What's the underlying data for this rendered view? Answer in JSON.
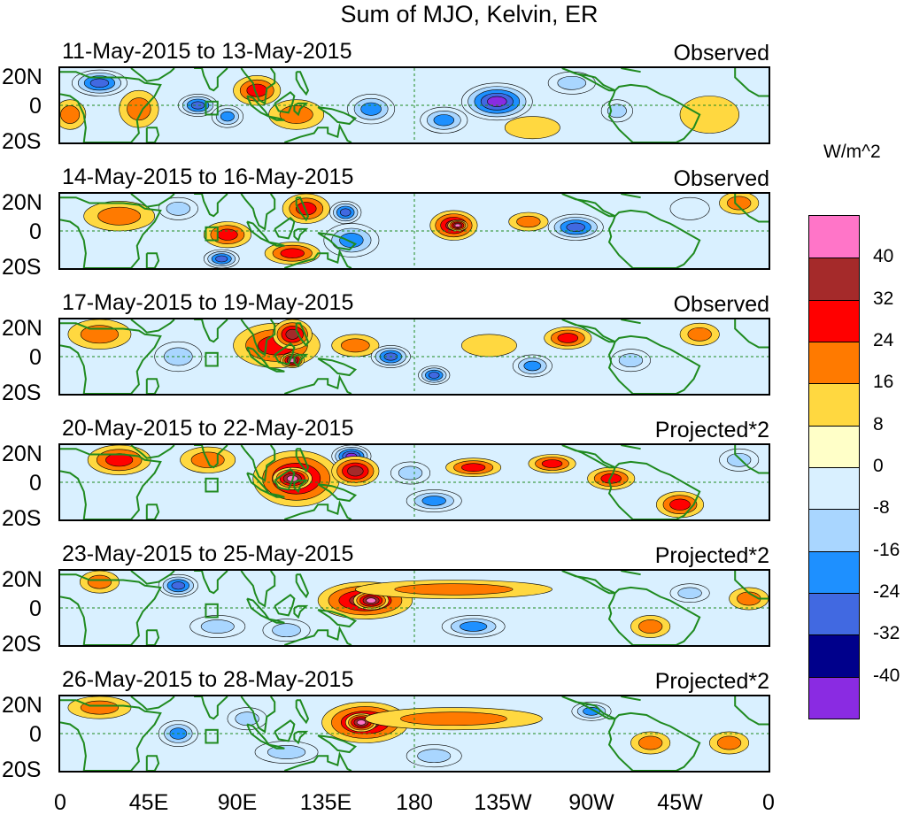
{
  "title": "Sum of MJO, Kelvin, ER",
  "colorbar": {
    "units": "W/m^2",
    "levels": [
      "40",
      "32",
      "24",
      "16",
      "8",
      "0",
      "-8",
      "-16",
      "-24",
      "-32",
      "-40"
    ],
    "colors": [
      "#ff75c8",
      "#a52a2a",
      "#ff0000",
      "#ff7a00",
      "#ffd840",
      "#ffffc8",
      "#d9f0ff",
      "#a9d6ff",
      "#1e90ff",
      "#4169e1",
      "#00008b",
      "#8a2be2"
    ]
  },
  "panels": [
    {
      "date_range": "11-May-2015 to 13-May-2015",
      "status": "Observed"
    },
    {
      "date_range": "14-May-2015 to 16-May-2015",
      "status": "Observed"
    },
    {
      "date_range": "17-May-2015 to 19-May-2015",
      "status": "Observed"
    },
    {
      "date_range": "20-May-2015 to 22-May-2015",
      "status": "Projected*2"
    },
    {
      "date_range": "23-May-2015 to 25-May-2015",
      "status": "Projected*2"
    },
    {
      "date_range": "26-May-2015 to 28-May-2015",
      "status": "Projected*2"
    }
  ],
  "lat_labels": {
    "north": "20N",
    "equator": "0",
    "south": "20S"
  },
  "lon_labels": [
    "0",
    "45E",
    "90E",
    "135E",
    "180",
    "135W",
    "90W",
    "45W",
    "0"
  ],
  "anomalies": [
    [
      {
        "lon": 20,
        "lat": 12,
        "rx": 14,
        "ry": 7,
        "level": -32
      },
      {
        "lon": 70,
        "lat": 0,
        "rx": 10,
        "ry": 6,
        "level": -32
      },
      {
        "lon": 85,
        "lat": -6,
        "rx": 8,
        "ry": 6,
        "level": -24
      },
      {
        "lon": 40,
        "lat": -2,
        "rx": 10,
        "ry": 10,
        "level": 16
      },
      {
        "lon": 120,
        "lat": -5,
        "rx": 14,
        "ry": 8,
        "level": 16
      },
      {
        "lon": 100,
        "lat": 8,
        "rx": 12,
        "ry": 8,
        "level": 24
      },
      {
        "lon": 158,
        "lat": -2,
        "rx": 12,
        "ry": 8,
        "level": -24
      },
      {
        "lon": 222,
        "lat": 2,
        "rx": 18,
        "ry": 10,
        "level": -40
      },
      {
        "lon": 195,
        "lat": -8,
        "rx": 12,
        "ry": 7,
        "level": -24
      },
      {
        "lon": 260,
        "lat": 12,
        "rx": 12,
        "ry": 6,
        "level": -16
      },
      {
        "lon": 283,
        "lat": -3,
        "rx": 8,
        "ry": 6,
        "level": -16
      },
      {
        "lon": 330,
        "lat": -5,
        "rx": 15,
        "ry": 10,
        "level": 8
      },
      {
        "lon": 5,
        "lat": -5,
        "rx": 8,
        "ry": 8,
        "level": 16
      },
      {
        "lon": 240,
        "lat": -12,
        "rx": 14,
        "ry": 6,
        "level": 8
      }
    ],
    [
      {
        "lon": 30,
        "lat": 8,
        "rx": 18,
        "ry": 8,
        "level": 16
      },
      {
        "lon": 60,
        "lat": 12,
        "rx": 10,
        "ry": 6,
        "level": -16
      },
      {
        "lon": 85,
        "lat": -2,
        "rx": 12,
        "ry": 7,
        "level": 24
      },
      {
        "lon": 82,
        "lat": -15,
        "rx": 9,
        "ry": 5,
        "level": -32
      },
      {
        "lon": 125,
        "lat": 12,
        "rx": 12,
        "ry": 8,
        "level": 24
      },
      {
        "lon": 118,
        "lat": -12,
        "rx": 14,
        "ry": 6,
        "level": 24
      },
      {
        "lon": 145,
        "lat": 10,
        "rx": 8,
        "ry": 6,
        "level": -32
      },
      {
        "lon": 148,
        "lat": -5,
        "rx": 14,
        "ry": 9,
        "level": -24
      },
      {
        "lon": 200,
        "lat": 3,
        "rx": 12,
        "ry": 8,
        "level": 32
      },
      {
        "lon": 202,
        "lat": 3,
        "rx": 5,
        "ry": 3,
        "level": 40
      },
      {
        "lon": 238,
        "lat": 5,
        "rx": 10,
        "ry": 5,
        "level": 16
      },
      {
        "lon": 262,
        "lat": 2,
        "rx": 14,
        "ry": 7,
        "level": -32
      },
      {
        "lon": 320,
        "lat": 12,
        "rx": 10,
        "ry": 6,
        "level": -8
      },
      {
        "lon": 345,
        "lat": 15,
        "rx": 10,
        "ry": 6,
        "level": 16
      }
    ],
    [
      {
        "lon": 20,
        "lat": 12,
        "rx": 16,
        "ry": 8,
        "level": 16
      },
      {
        "lon": 60,
        "lat": 0,
        "rx": 12,
        "ry": 8,
        "level": -16
      },
      {
        "lon": 110,
        "lat": 6,
        "rx": 22,
        "ry": 12,
        "level": 24
      },
      {
        "lon": 118,
        "lat": 12,
        "rx": 10,
        "ry": 8,
        "level": 32
      },
      {
        "lon": 118,
        "lat": -2,
        "rx": 6,
        "ry": 4,
        "level": 40
      },
      {
        "lon": 150,
        "lat": 6,
        "rx": 12,
        "ry": 6,
        "level": 16
      },
      {
        "lon": 168,
        "lat": 0,
        "rx": 10,
        "ry": 6,
        "level": -32
      },
      {
        "lon": 190,
        "lat": -10,
        "rx": 8,
        "ry": 5,
        "level": -32
      },
      {
        "lon": 218,
        "lat": 6,
        "rx": 14,
        "ry": 6,
        "level": 8
      },
      {
        "lon": 258,
        "lat": 10,
        "rx": 12,
        "ry": 6,
        "level": 24
      },
      {
        "lon": 240,
        "lat": -5,
        "rx": 10,
        "ry": 6,
        "level": -24
      },
      {
        "lon": 290,
        "lat": -2,
        "rx": 10,
        "ry": 6,
        "level": -16
      },
      {
        "lon": 325,
        "lat": 12,
        "rx": 10,
        "ry": 6,
        "level": 16
      }
    ],
    [
      {
        "lon": 30,
        "lat": 12,
        "rx": 16,
        "ry": 8,
        "level": 24
      },
      {
        "lon": 75,
        "lat": 12,
        "rx": 14,
        "ry": 7,
        "level": 16
      },
      {
        "lon": 120,
        "lat": 2,
        "rx": 22,
        "ry": 15,
        "level": 32
      },
      {
        "lon": 118,
        "lat": 2,
        "rx": 10,
        "ry": 6,
        "level": 40
      },
      {
        "lon": 148,
        "lat": 14,
        "rx": 10,
        "ry": 6,
        "level": -40
      },
      {
        "lon": 150,
        "lat": 6,
        "rx": 12,
        "ry": 8,
        "level": 32
      },
      {
        "lon": 178,
        "lat": 5,
        "rx": 10,
        "ry": 6,
        "level": -16
      },
      {
        "lon": 190,
        "lat": -10,
        "rx": 14,
        "ry": 6,
        "level": -24
      },
      {
        "lon": 210,
        "lat": 8,
        "rx": 14,
        "ry": 5,
        "level": 24
      },
      {
        "lon": 250,
        "lat": 10,
        "rx": 12,
        "ry": 5,
        "level": 24
      },
      {
        "lon": 280,
        "lat": 2,
        "rx": 12,
        "ry": 6,
        "level": 24
      },
      {
        "lon": 315,
        "lat": -12,
        "rx": 12,
        "ry": 7,
        "level": 24
      },
      {
        "lon": 345,
        "lat": 12,
        "rx": 10,
        "ry": 6,
        "level": -16
      }
    ],
    [
      {
        "lon": 20,
        "lat": 14,
        "rx": 10,
        "ry": 6,
        "level": 16
      },
      {
        "lon": 60,
        "lat": 12,
        "rx": 10,
        "ry": 6,
        "level": -32
      },
      {
        "lon": 80,
        "lat": -10,
        "rx": 14,
        "ry": 6,
        "level": -16
      },
      {
        "lon": 155,
        "lat": 4,
        "rx": 24,
        "ry": 10,
        "level": 32
      },
      {
        "lon": 158,
        "lat": 4,
        "rx": 9,
        "ry": 5,
        "level": 40
      },
      {
        "lon": 200,
        "lat": 10,
        "rx": 50,
        "ry": 5,
        "level": 16
      },
      {
        "lon": 210,
        "lat": -10,
        "rx": 16,
        "ry": 6,
        "level": -24
      },
      {
        "lon": 115,
        "lat": -12,
        "rx": 12,
        "ry": 6,
        "level": -16
      },
      {
        "lon": 300,
        "lat": -10,
        "rx": 10,
        "ry": 6,
        "level": 16
      },
      {
        "lon": 320,
        "lat": 8,
        "rx": 10,
        "ry": 5,
        "level": -16
      },
      {
        "lon": 350,
        "lat": 5,
        "rx": 10,
        "ry": 6,
        "level": 16
      }
    ],
    [
      {
        "lon": 20,
        "lat": 14,
        "rx": 16,
        "ry": 6,
        "level": 16
      },
      {
        "lon": 60,
        "lat": 0,
        "rx": 10,
        "ry": 7,
        "level": -24
      },
      {
        "lon": 95,
        "lat": 8,
        "rx": 10,
        "ry": 6,
        "level": -16
      },
      {
        "lon": 155,
        "lat": 6,
        "rx": 22,
        "ry": 11,
        "level": 32
      },
      {
        "lon": 153,
        "lat": 6,
        "rx": 8,
        "ry": 5,
        "level": 40
      },
      {
        "lon": 200,
        "lat": 8,
        "rx": 45,
        "ry": 6,
        "level": 16
      },
      {
        "lon": 115,
        "lat": -10,
        "rx": 16,
        "ry": 6,
        "level": -16
      },
      {
        "lon": 190,
        "lat": -12,
        "rx": 14,
        "ry": 6,
        "level": -16
      },
      {
        "lon": 270,
        "lat": 12,
        "rx": 10,
        "ry": 5,
        "level": -24
      },
      {
        "lon": 300,
        "lat": -5,
        "rx": 10,
        "ry": 6,
        "level": 16
      },
      {
        "lon": 340,
        "lat": -5,
        "rx": 10,
        "ry": 6,
        "level": 16
      }
    ]
  ]
}
